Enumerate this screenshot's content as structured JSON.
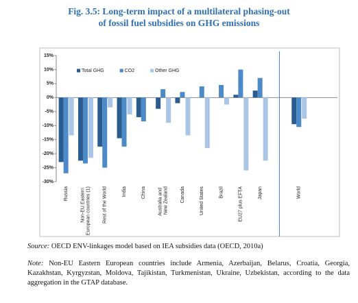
{
  "chart_data": {
    "type": "bar",
    "title_lines": [
      "Fig. 3.5: Long-term impact of a multilateral phasing-out",
      "of fossil fuel subsidies on GHG emissions"
    ],
    "categories": [
      "Russia",
      "Non-EU Eastern European countries (1)",
      "Rest of the World",
      "India",
      "China",
      "Australia and New Zealand",
      "Canada",
      "United States",
      "Brazil",
      "EU27 plus EFTA",
      "Japan",
      null,
      "World"
    ],
    "series": [
      {
        "name": "Total GHG",
        "color": "#2b5c8f",
        "values": [
          -23,
          -22.5,
          -17.5,
          -14.5,
          -7,
          -4,
          -2,
          0,
          0,
          1,
          2.5,
          null,
          -9.5
        ]
      },
      {
        "name": "CO2",
        "color": "#4d8ac8",
        "values": [
          -27,
          -23.5,
          -25,
          -17.5,
          -8.5,
          3,
          2,
          4,
          4.5,
          10,
          7,
          null,
          -10.5
        ]
      },
      {
        "name": "Other GHG",
        "color": "#a9c6e6",
        "values": [
          -13.5,
          -21.5,
          -3.5,
          -6,
          0,
          -9,
          -13.5,
          -18,
          -2.5,
          -26,
          -22.5,
          null,
          -7.5
        ]
      }
    ],
    "ylim": [
      -30,
      15
    ],
    "yticks": [
      {
        "value": -30,
        "label": "-30%"
      },
      {
        "value": -25,
        "label": "-25%"
      },
      {
        "value": -20,
        "label": "-20%"
      },
      {
        "value": -15,
        "label": "-15%"
      },
      {
        "value": -10,
        "label": "-10%"
      },
      {
        "value": -5,
        "label": "-5%"
      },
      {
        "value": 0,
        "label": "0%"
      },
      {
        "value": 5,
        "label": "5%"
      },
      {
        "value": 10,
        "label": "10%"
      },
      {
        "value": 15,
        "label": "15%"
      }
    ],
    "legend": "top-left"
  },
  "source": {
    "label": "Source:",
    "text": "OECD ENV-linkages model based on IEA subsidies data (OECD, 2010a)"
  },
  "note": {
    "label": "Note:",
    "text": "Non-EU Eastern European countries include Armenia, Azerbaijan, Belarus, Croatia, Georgia, Kazakhstan, Kyrgyzstan, Moldova, Tajikistan, Turkmenistan, Ukraine, Uzbekistan, according to the data aggregation in the GTAP database."
  }
}
